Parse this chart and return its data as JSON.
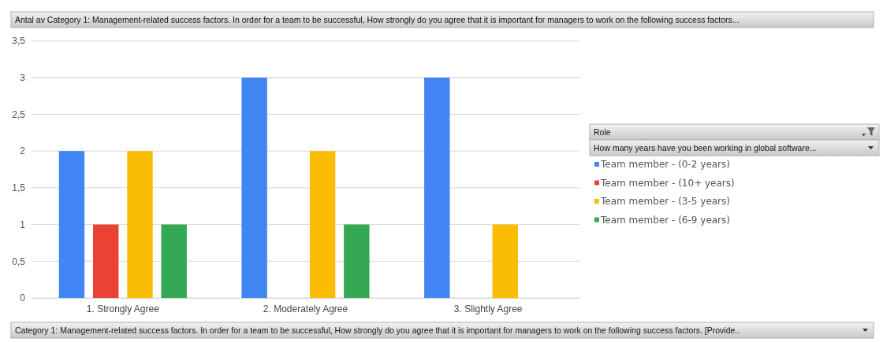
{
  "chart_data": {
    "type": "bar",
    "title": "Antal av Category 1: Management-related success factors. In order for a team to be successful, How strongly do you agree that it is important for managers to work on the following success factors...",
    "xlabel": "Category 1: Management-related success factors. In order for a team to be successful, How strongly do you agree that it is important for managers to work on the following success factors.  [Provide..",
    "legend_title": "Role",
    "annotations": [
      "How many years have you been working in global software..."
    ],
    "categories": [
      "1. Strongly Agree",
      "2. Moderately Agree",
      "3. Slightly Agree"
    ],
    "series": [
      {
        "name": "Team member - (0-2 years)",
        "color": "#4285f4",
        "values": [
          2,
          3,
          3
        ]
      },
      {
        "name": "Team member - (10+ years)",
        "color": "#ea4335",
        "values": [
          1,
          null,
          null
        ]
      },
      {
        "name": "Team member - (3-5 years)",
        "color": "#fbbc04",
        "values": [
          2,
          2,
          1
        ]
      },
      {
        "name": "Team member - (6-9 years)",
        "color": "#34a853",
        "values": [
          1,
          1,
          null
        ]
      }
    ],
    "ylim": [
      0,
      3.5
    ],
    "yticks": [
      0,
      {
        "value": 0.5,
        "label": "0,5"
      },
      1,
      {
        "value": 1.5,
        "label": "1,5"
      },
      2,
      {
        "value": 2.5,
        "label": "2,5"
      },
      3,
      {
        "value": 3.5,
        "label": "3,5"
      }
    ],
    "grid": "y",
    "legend": "right"
  }
}
